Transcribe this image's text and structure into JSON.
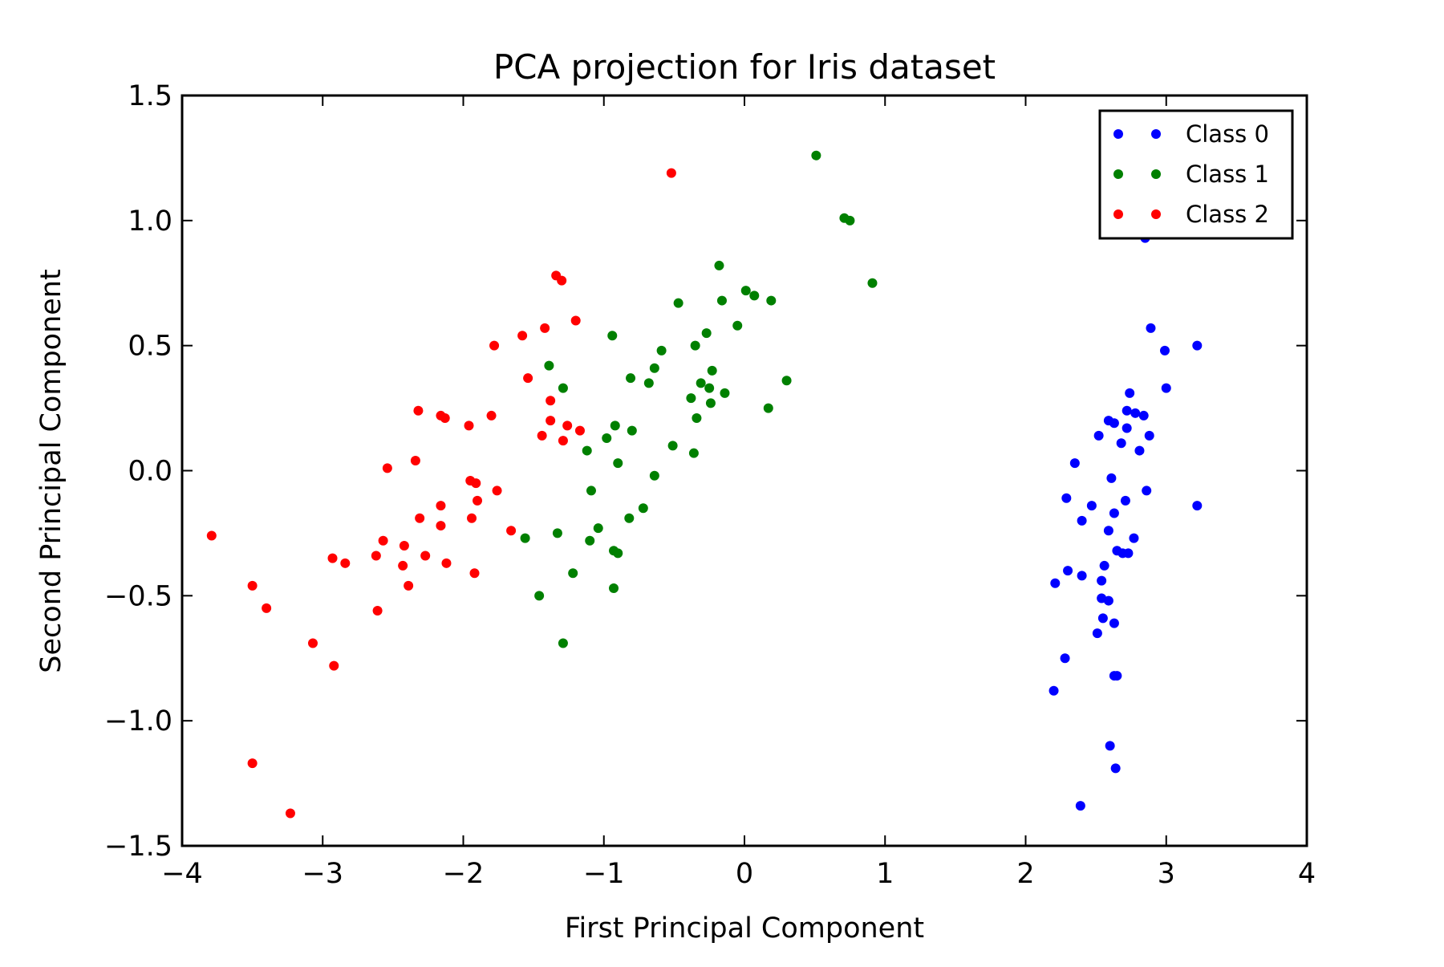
{
  "chart_data": {
    "type": "scatter",
    "title": "PCA projection for Iris dataset",
    "xlabel": "First Principal Component",
    "ylabel": "Second Principal Component",
    "xlim": [
      -4,
      4
    ],
    "ylim": [
      -1.5,
      1.5
    ],
    "x_ticks": [
      -4,
      -3,
      -2,
      -1,
      0,
      1,
      2,
      3,
      4
    ],
    "y_ticks": [
      -1.5,
      -1.0,
      -0.5,
      0.0,
      0.5,
      1.0,
      1.5
    ],
    "x_tick_labels": [
      "−4",
      "−3",
      "−2",
      "−1",
      "0",
      "1",
      "2",
      "3",
      "4"
    ],
    "y_tick_labels": [
      "−1.5",
      "−1.0",
      "−0.5",
      "0.0",
      "0.5",
      "1.0",
      "1.5"
    ],
    "grid": false,
    "legend_position": "top-right",
    "series": [
      {
        "name": "Class 0",
        "color": "#0000ff",
        "points": [
          [
            2.85,
            0.93
          ],
          [
            2.89,
            0.57
          ],
          [
            2.99,
            0.48
          ],
          [
            3.22,
            0.5
          ],
          [
            3.0,
            0.33
          ],
          [
            2.74,
            0.31
          ],
          [
            2.72,
            0.24
          ],
          [
            2.78,
            0.23
          ],
          [
            2.84,
            0.22
          ],
          [
            2.59,
            0.2
          ],
          [
            2.63,
            0.19
          ],
          [
            2.72,
            0.17
          ],
          [
            2.88,
            0.14
          ],
          [
            2.52,
            0.14
          ],
          [
            2.68,
            0.11
          ],
          [
            2.81,
            0.08
          ],
          [
            2.35,
            0.03
          ],
          [
            2.61,
            -0.03
          ],
          [
            2.86,
            -0.08
          ],
          [
            2.29,
            -0.11
          ],
          [
            2.71,
            -0.12
          ],
          [
            2.47,
            -0.14
          ],
          [
            3.22,
            -0.14
          ],
          [
            2.63,
            -0.17
          ],
          [
            2.4,
            -0.2
          ],
          [
            2.59,
            -0.24
          ],
          [
            2.77,
            -0.27
          ],
          [
            2.65,
            -0.32
          ],
          [
            2.69,
            -0.33
          ],
          [
            2.73,
            -0.33
          ],
          [
            2.56,
            -0.38
          ],
          [
            2.3,
            -0.4
          ],
          [
            2.4,
            -0.42
          ],
          [
            2.54,
            -0.44
          ],
          [
            2.21,
            -0.45
          ],
          [
            2.54,
            -0.51
          ],
          [
            2.59,
            -0.52
          ],
          [
            2.55,
            -0.59
          ],
          [
            2.63,
            -0.61
          ],
          [
            2.51,
            -0.65
          ],
          [
            2.28,
            -0.75
          ],
          [
            2.63,
            -0.82
          ],
          [
            2.65,
            -0.82
          ],
          [
            2.2,
            -0.88
          ],
          [
            2.6,
            -1.1
          ],
          [
            2.64,
            -1.19
          ],
          [
            2.39,
            -1.34
          ]
        ]
      },
      {
        "name": "Class 1",
        "color": "#008000",
        "points": [
          [
            0.51,
            1.26
          ],
          [
            0.71,
            1.01
          ],
          [
            0.75,
            1.0
          ],
          [
            0.91,
            0.75
          ],
          [
            -0.18,
            0.82
          ],
          [
            0.01,
            0.72
          ],
          [
            0.07,
            0.7
          ],
          [
            0.19,
            0.68
          ],
          [
            -0.16,
            0.68
          ],
          [
            -0.47,
            0.67
          ],
          [
            -0.05,
            0.58
          ],
          [
            -0.27,
            0.55
          ],
          [
            -0.94,
            0.54
          ],
          [
            -0.35,
            0.5
          ],
          [
            -0.59,
            0.48
          ],
          [
            -1.39,
            0.42
          ],
          [
            -0.64,
            0.41
          ],
          [
            -0.23,
            0.4
          ],
          [
            -0.81,
            0.37
          ],
          [
            0.3,
            0.36
          ],
          [
            -0.68,
            0.35
          ],
          [
            -0.31,
            0.35
          ],
          [
            -0.25,
            0.33
          ],
          [
            -1.29,
            0.33
          ],
          [
            -0.14,
            0.31
          ],
          [
            -0.38,
            0.29
          ],
          [
            -0.24,
            0.27
          ],
          [
            0.17,
            0.25
          ],
          [
            -0.34,
            0.21
          ],
          [
            -0.92,
            0.18
          ],
          [
            -0.8,
            0.16
          ],
          [
            -0.98,
            0.13
          ],
          [
            -0.51,
            0.1
          ],
          [
            -1.12,
            0.08
          ],
          [
            -0.36,
            0.07
          ],
          [
            -0.9,
            0.03
          ],
          [
            -0.64,
            -0.02
          ],
          [
            -1.09,
            -0.08
          ],
          [
            -0.72,
            -0.15
          ],
          [
            -0.82,
            -0.19
          ],
          [
            -1.04,
            -0.23
          ],
          [
            -1.33,
            -0.25
          ],
          [
            -1.56,
            -0.27
          ],
          [
            -1.1,
            -0.28
          ],
          [
            -0.93,
            -0.32
          ],
          [
            -0.9,
            -0.33
          ],
          [
            -1.22,
            -0.41
          ],
          [
            -0.93,
            -0.47
          ],
          [
            -1.46,
            -0.5
          ],
          [
            -1.29,
            -0.69
          ]
        ]
      },
      {
        "name": "Class 2",
        "color": "#ff0000",
        "points": [
          [
            -0.52,
            1.19
          ],
          [
            -1.34,
            0.78
          ],
          [
            -1.3,
            0.76
          ],
          [
            -1.2,
            0.6
          ],
          [
            -1.42,
            0.57
          ],
          [
            -1.58,
            0.54
          ],
          [
            -1.78,
            0.5
          ],
          [
            -1.54,
            0.37
          ],
          [
            -1.38,
            0.28
          ],
          [
            -2.32,
            0.24
          ],
          [
            -2.16,
            0.22
          ],
          [
            -1.8,
            0.22
          ],
          [
            -2.13,
            0.21
          ],
          [
            -1.38,
            0.2
          ],
          [
            -1.26,
            0.18
          ],
          [
            -1.96,
            0.18
          ],
          [
            -1.17,
            0.16
          ],
          [
            -1.44,
            0.14
          ],
          [
            -1.29,
            0.12
          ],
          [
            -2.34,
            0.04
          ],
          [
            -2.54,
            0.01
          ],
          [
            -1.95,
            -0.04
          ],
          [
            -1.91,
            -0.05
          ],
          [
            -1.76,
            -0.08
          ],
          [
            -1.9,
            -0.12
          ],
          [
            -2.16,
            -0.14
          ],
          [
            -2.31,
            -0.19
          ],
          [
            -1.94,
            -0.19
          ],
          [
            -2.16,
            -0.22
          ],
          [
            -1.66,
            -0.24
          ],
          [
            -3.79,
            -0.26
          ],
          [
            -2.57,
            -0.28
          ],
          [
            -2.42,
            -0.3
          ],
          [
            -2.27,
            -0.34
          ],
          [
            -2.62,
            -0.34
          ],
          [
            -2.93,
            -0.35
          ],
          [
            -2.84,
            -0.37
          ],
          [
            -2.43,
            -0.38
          ],
          [
            -2.12,
            -0.37
          ],
          [
            -1.92,
            -0.41
          ],
          [
            -2.39,
            -0.46
          ],
          [
            -3.5,
            -0.46
          ],
          [
            -3.4,
            -0.55
          ],
          [
            -2.61,
            -0.56
          ],
          [
            -3.07,
            -0.69
          ],
          [
            -2.92,
            -0.78
          ],
          [
            -3.5,
            -1.17
          ],
          [
            -3.23,
            -1.37
          ]
        ]
      }
    ]
  }
}
